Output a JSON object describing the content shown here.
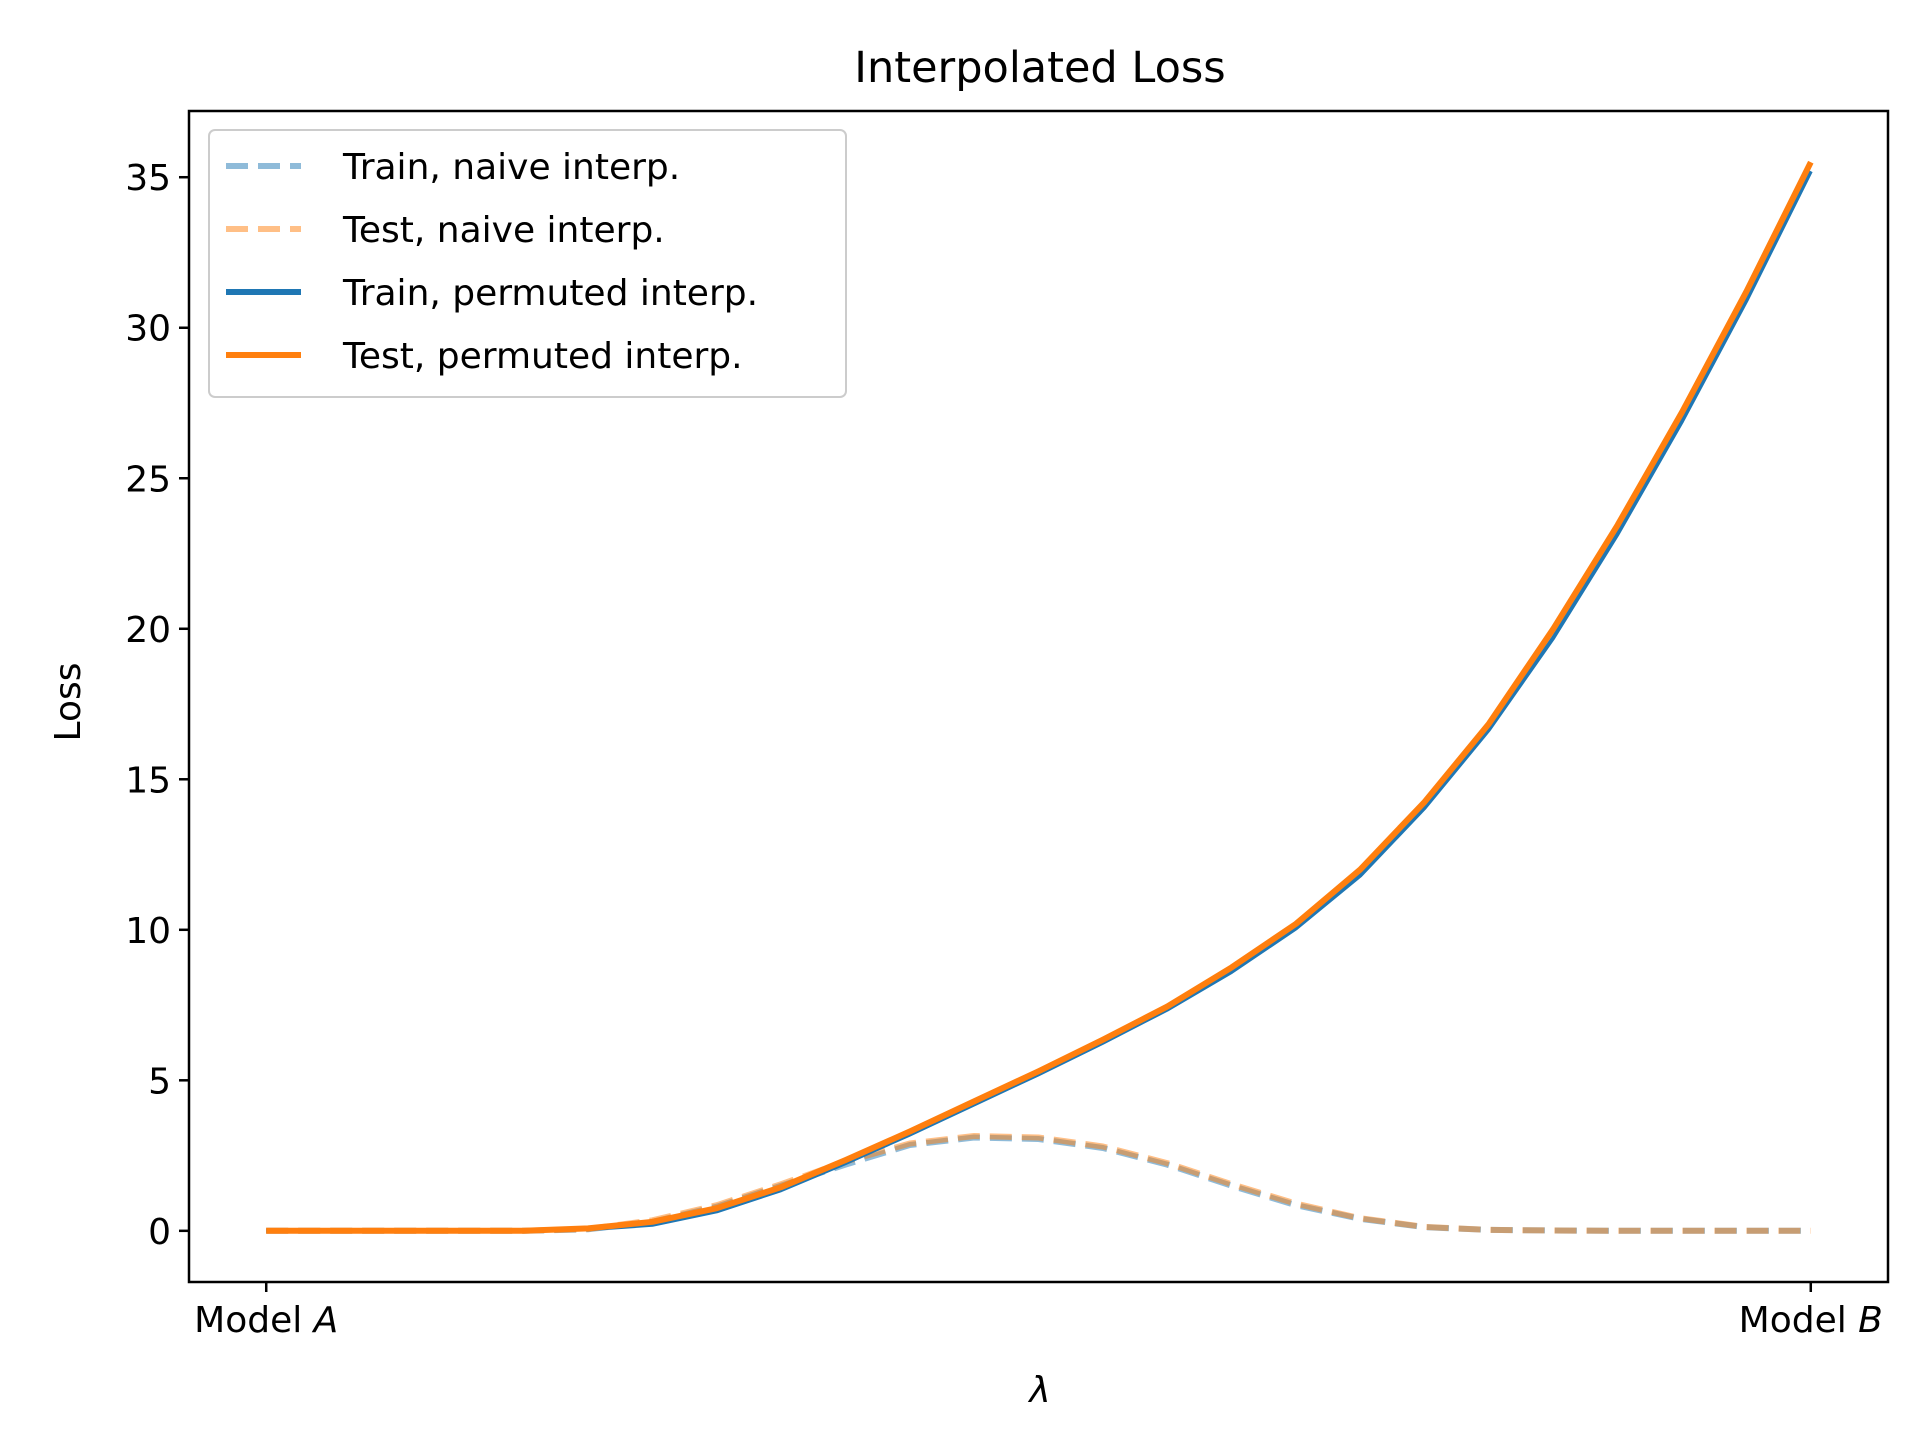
{
  "chart_data": {
    "type": "line",
    "title": "Interpolated Loss",
    "xlabel": "λ",
    "ylabel": "Loss",
    "x_tick_labels": [
      {
        "pre": "Model ",
        "italic": "A"
      },
      {
        "pre": "Model ",
        "italic": "B"
      }
    ],
    "x": [
      0.0,
      0.0417,
      0.0833,
      0.125,
      0.1667,
      0.2083,
      0.25,
      0.2917,
      0.3333,
      0.375,
      0.4167,
      0.4583,
      0.5,
      0.5417,
      0.5833,
      0.625,
      0.6667,
      0.7083,
      0.75,
      0.7917,
      0.8333,
      0.875,
      0.9167,
      0.9583,
      1.0
    ],
    "xlim": [
      -0.05,
      1.05
    ],
    "ylim": [
      -1.7,
      37.2
    ],
    "y_ticks": [
      0,
      5,
      10,
      15,
      20,
      25,
      30,
      35
    ],
    "grid": false,
    "legend_position": "top-left",
    "series": [
      {
        "name": "Train, naive interp.",
        "color": "#1f77b4",
        "style": "dashed",
        "opacity": 0.5,
        "values": [
          0.0,
          0.0,
          0.0,
          0.0,
          0.0,
          0.05,
          0.3,
          0.8,
          1.5,
          2.2,
          2.85,
          3.1,
          3.05,
          2.75,
          2.2,
          1.5,
          0.85,
          0.4,
          0.12,
          0.03,
          0.01,
          0.0,
          0.0,
          0.0,
          0.0
        ]
      },
      {
        "name": "Test, naive interp.",
        "color": "#ff7f0e",
        "style": "dashed",
        "opacity": 0.5,
        "values": [
          0.0,
          0.0,
          0.0,
          0.0,
          0.0,
          0.06,
          0.35,
          0.85,
          1.55,
          2.3,
          2.9,
          3.15,
          3.1,
          2.8,
          2.25,
          1.55,
          0.9,
          0.42,
          0.13,
          0.03,
          0.01,
          0.0,
          0.0,
          0.0,
          0.0
        ]
      },
      {
        "name": "Train, permuted interp.",
        "color": "#1f77b4",
        "style": "solid",
        "opacity": 1,
        "values": [
          0.0,
          0.0,
          0.0,
          0.0,
          0.0,
          0.05,
          0.2,
          0.65,
          1.35,
          2.25,
          3.2,
          4.2,
          5.2,
          6.25,
          7.35,
          8.6,
          10.05,
          11.8,
          14.05,
          16.65,
          19.7,
          23.15,
          26.9,
          30.9,
          35.2
        ]
      },
      {
        "name": "Test, permuted interp.",
        "color": "#ff7f0e",
        "style": "solid",
        "opacity": 1,
        "values": [
          0.0,
          0.0,
          0.0,
          0.0,
          0.0,
          0.08,
          0.3,
          0.75,
          1.45,
          2.35,
          3.3,
          4.3,
          5.3,
          6.35,
          7.45,
          8.75,
          10.2,
          12.0,
          14.25,
          16.85,
          20.0,
          23.45,
          27.2,
          31.2,
          35.5
        ]
      }
    ]
  }
}
